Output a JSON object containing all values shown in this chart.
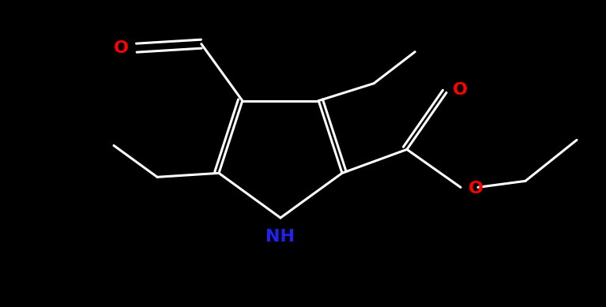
{
  "bg_color": "#000000",
  "bond_color": "#ffffff",
  "O_color": "#ff0000",
  "N_color": "#2222ee",
  "bond_lw": 2.2,
  "font_size": 16,
  "figsize": [
    7.67,
    3.89
  ],
  "dpi": 100,
  "xlim": [
    0,
    7.67
  ],
  "ylim": [
    0,
    3.89
  ]
}
